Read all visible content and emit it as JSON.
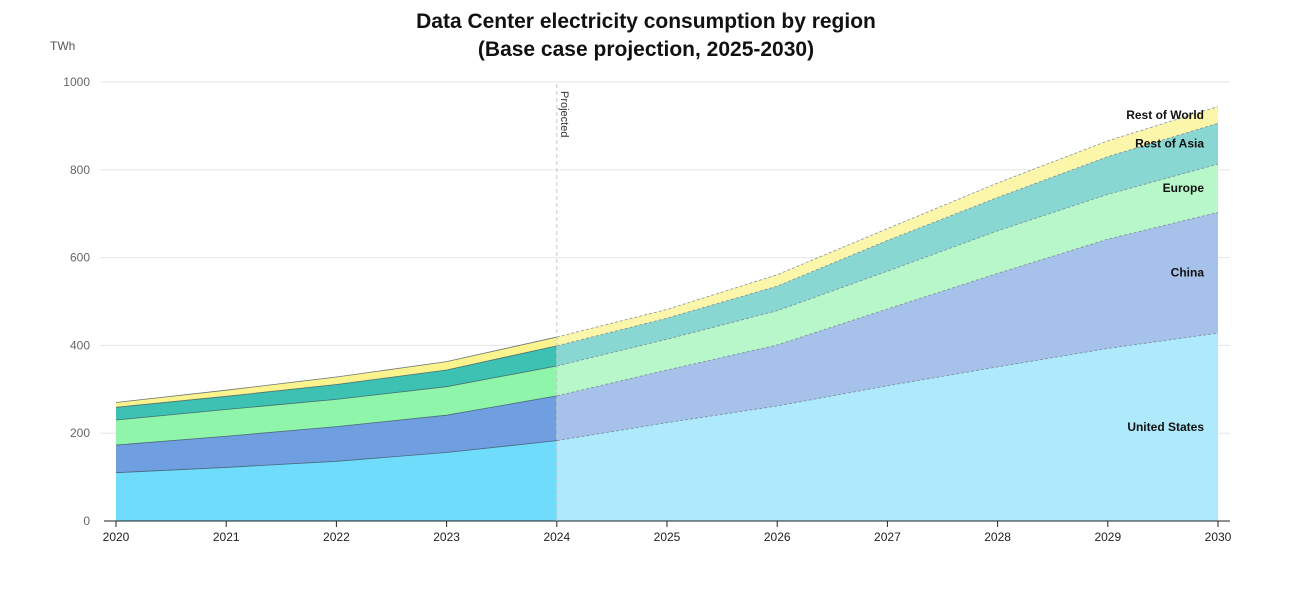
{
  "chart_data": {
    "type": "area",
    "title": "Data Center electricity consumption by region",
    "subtitle": "(Base case projection, 2025-2030)",
    "unit": "TWh",
    "ylim": [
      0,
      1000
    ],
    "yticks": [
      0,
      200,
      400,
      600,
      800,
      1000
    ],
    "x": [
      2020,
      2021,
      2022,
      2023,
      2024,
      2025,
      2026,
      2027,
      2028,
      2029,
      2030
    ],
    "stacked": true,
    "projection_start": 2024,
    "projection_label": "Projected",
    "grid": true,
    "series": [
      {
        "name": "United States",
        "color": "#6fdcfc",
        "projected_color": "#aeeafb",
        "values": [
          110,
          122,
          136,
          156,
          183,
          224,
          262,
          308,
          351,
          393,
          428
        ]
      },
      {
        "name": "China",
        "color": "#6f9fe0",
        "projected_color": "#a6c2ea",
        "values": [
          63,
          71,
          79,
          85,
          102,
          120,
          139,
          175,
          213,
          249,
          275
        ]
      },
      {
        "name": "Europe",
        "color": "#8ef5aa",
        "projected_color": "#b8f7c9",
        "values": [
          57,
          61,
          62,
          65,
          68,
          70,
          78,
          86,
          97,
          102,
          110
        ]
      },
      {
        "name": "Rest of Asia",
        "color": "#3cc1b2",
        "projected_color": "#88d7d2",
        "values": [
          29,
          30,
          34,
          38,
          46,
          48,
          56,
          70,
          76,
          86,
          93
        ]
      },
      {
        "name": "Rest of World",
        "color": "#fbf38d",
        "projected_color": "#fcf6aa",
        "values": [
          11,
          14,
          17,
          19,
          20,
          20,
          26,
          27,
          33,
          36,
          38
        ]
      }
    ]
  }
}
